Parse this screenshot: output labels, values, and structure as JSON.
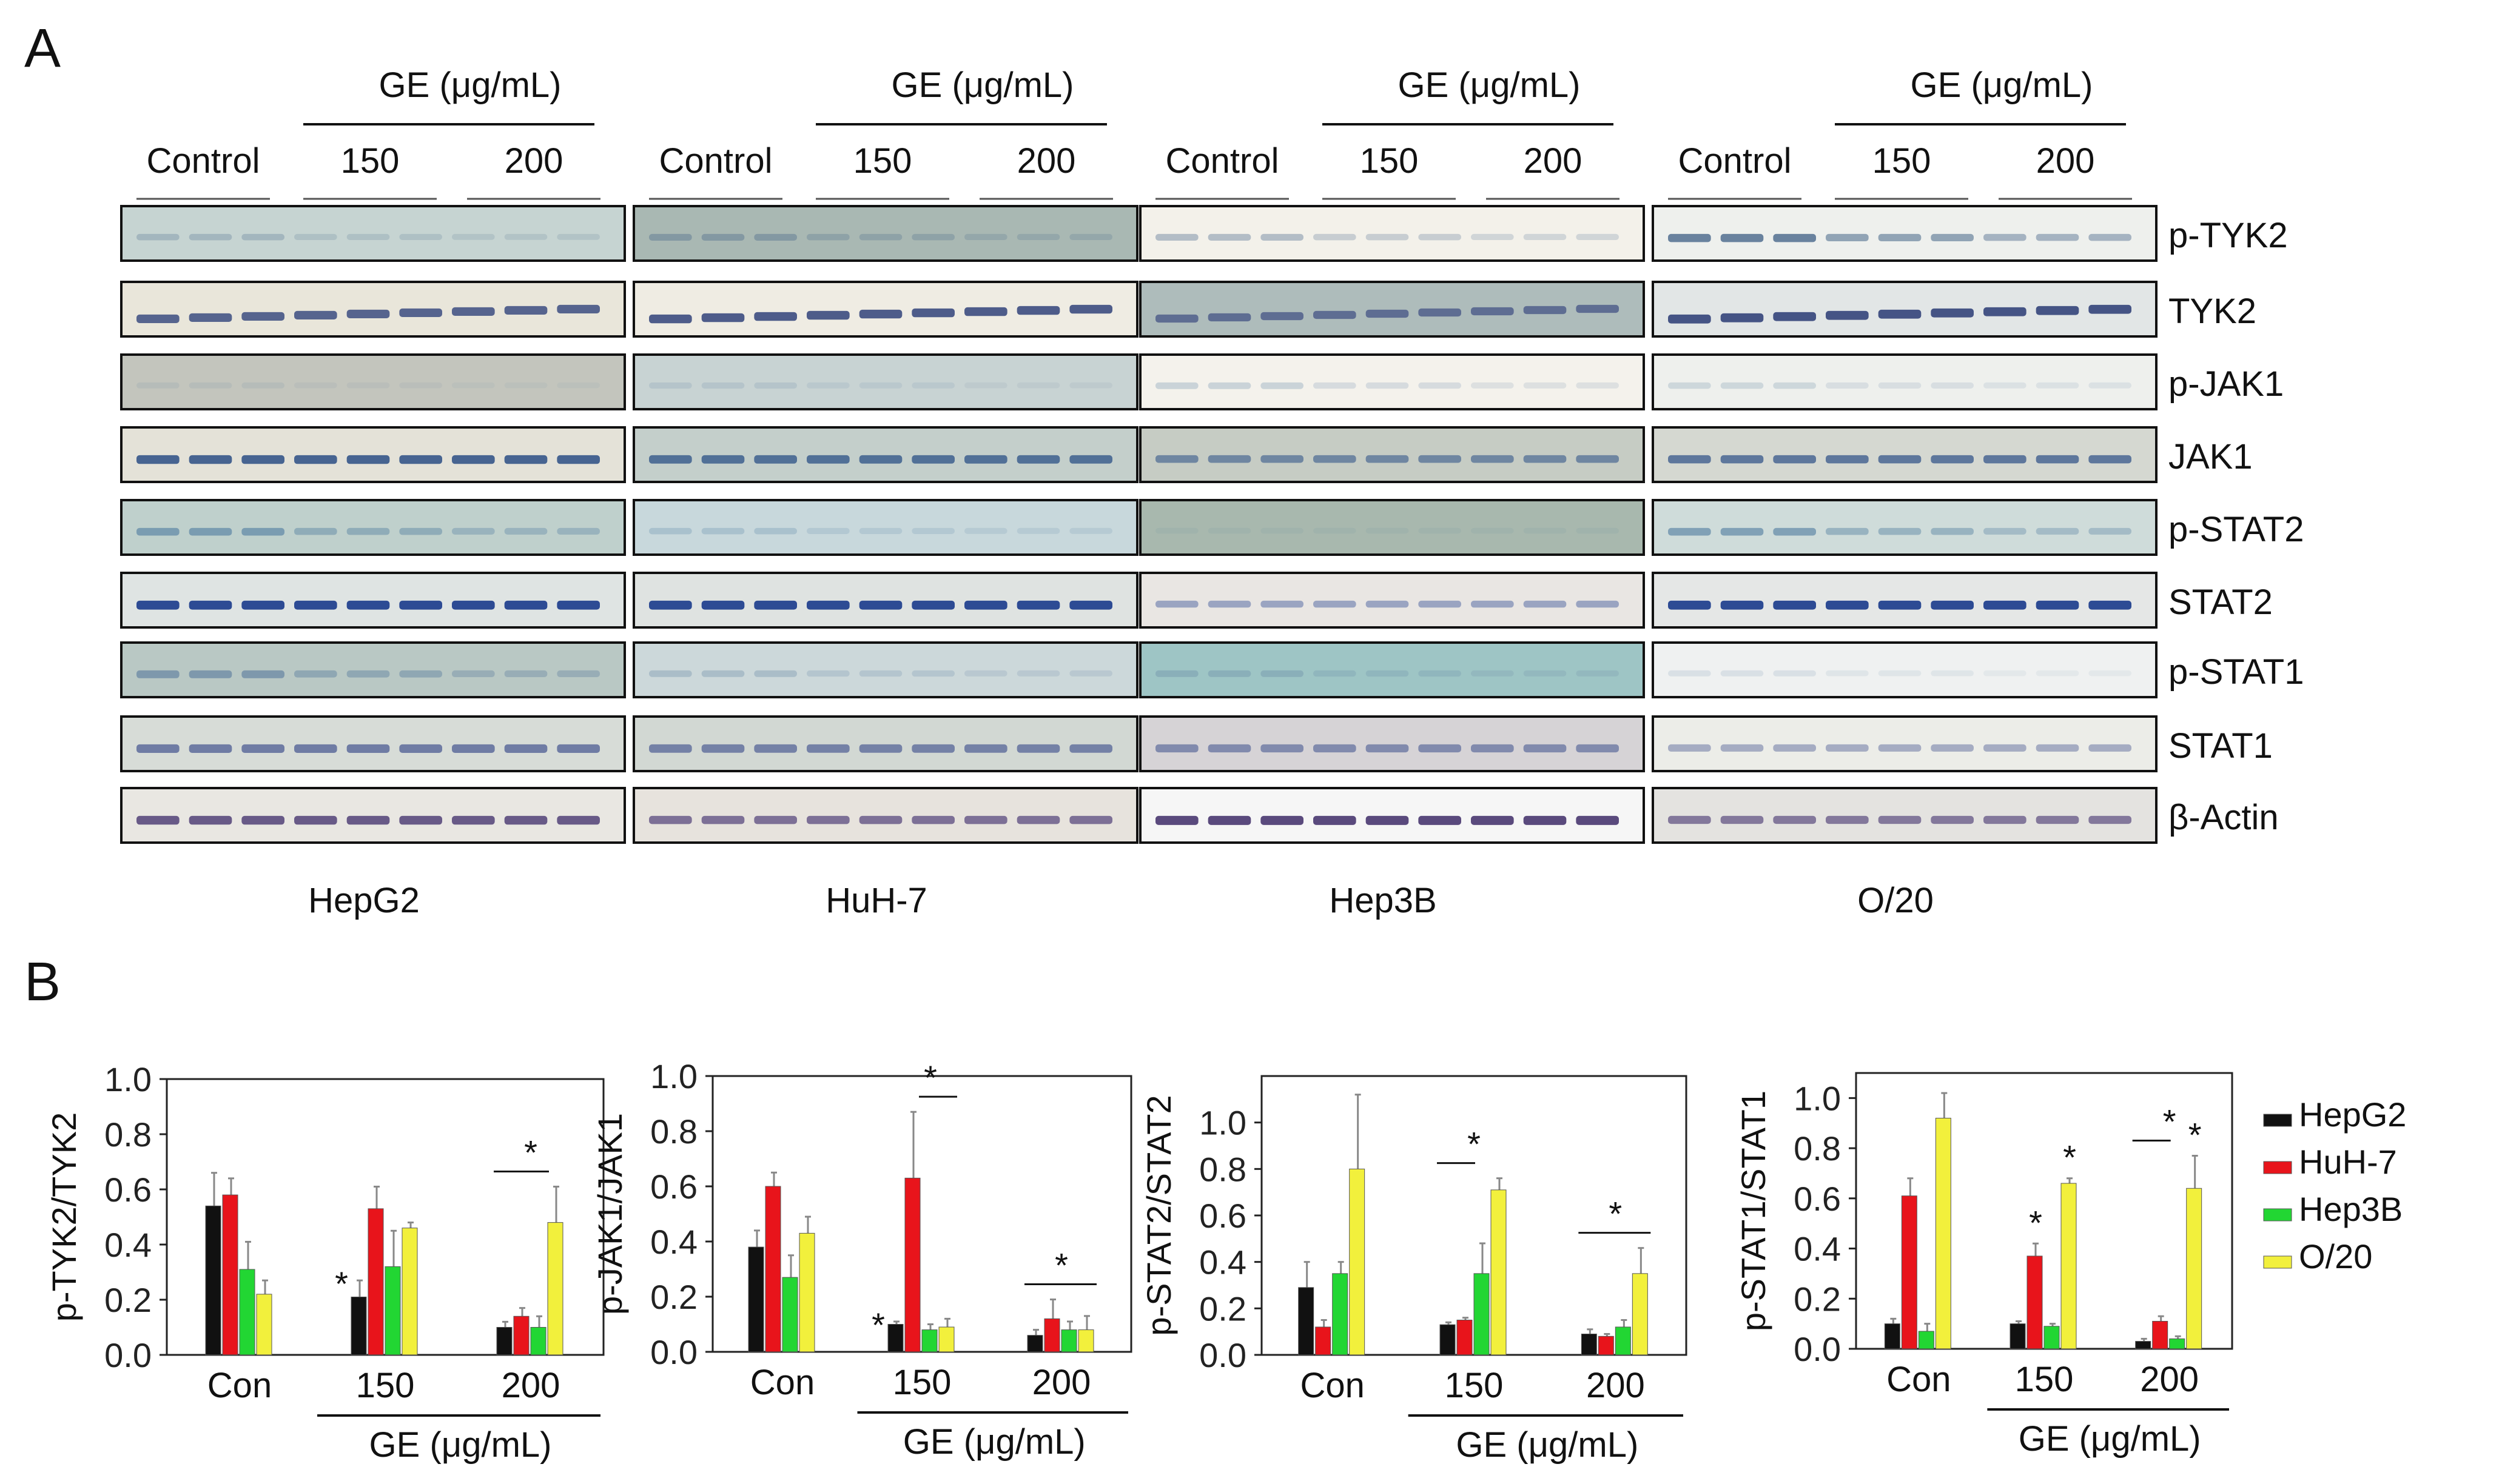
{
  "figure": {
    "panel_a_letter": "A",
    "panel_b_letter": "B",
    "colors": {
      "HepG2": "#111111",
      "HuH-7": "#e8141b",
      "Hep3B": "#22d633",
      "O/20": "#f2f03c"
    }
  },
  "panel_a": {
    "ge_label": "GE (μg/mL)",
    "col_labels": [
      "Control",
      "150",
      "200"
    ],
    "cell_lines": [
      "HepG2",
      "HuH-7",
      "Hep3B",
      "O/20"
    ],
    "proteins": [
      "p-TYK2",
      "TYK2",
      "p-JAK1",
      "JAK1",
      "p-STAT2",
      "STAT2",
      "p-STAT1",
      "STAT1",
      "β-Actin"
    ]
  },
  "panel_b": {
    "legend": [
      "HepG2",
      "HuH-7",
      "Hep3B",
      "O/20"
    ],
    "xlabel": "GE (μg/mL)",
    "sig_mark": "*"
  },
  "chart_data": [
    {
      "type": "bar",
      "ylabel": "p-TYK2/TYK2",
      "categories": [
        "Con",
        "150",
        "200"
      ],
      "ylim": [
        0,
        1.0
      ],
      "yticks": [
        "0.0",
        "0.2",
        "0.4",
        "0.6",
        "0.8",
        "1.0"
      ],
      "series": [
        {
          "name": "HepG2",
          "values": [
            0.54,
            0.21,
            0.1
          ],
          "errors": [
            0.12,
            0.06,
            0.02
          ]
        },
        {
          "name": "HuH-7",
          "values": [
            0.58,
            0.53,
            0.14
          ],
          "errors": [
            0.06,
            0.08,
            0.03
          ]
        },
        {
          "name": "Hep3B",
          "values": [
            0.31,
            0.32,
            0.1
          ],
          "errors": [
            0.1,
            0.13,
            0.04
          ]
        },
        {
          "name": "O/20",
          "values": [
            0.22,
            0.46,
            0.48
          ],
          "errors": [
            0.05,
            0.02,
            0.13
          ]
        }
      ],
      "stars": [
        {
          "group": 1,
          "series": 0
        },
        {
          "group": 2,
          "series": -1
        }
      ],
      "sig_lines": [
        {
          "group": 2,
          "from": 0,
          "to": 2
        }
      ]
    },
    {
      "type": "bar",
      "ylabel": "p-JAK1/JAK1",
      "categories": [
        "Con",
        "150",
        "200"
      ],
      "ylim": [
        0,
        1.0
      ],
      "yticks": [
        "0.0",
        "0.2",
        "0.4",
        "0.6",
        "0.8",
        "1.0"
      ],
      "series": [
        {
          "name": "HepG2",
          "values": [
            0.38,
            0.1,
            0.06
          ],
          "errors": [
            0.06,
            0.01,
            0.02
          ]
        },
        {
          "name": "HuH-7",
          "values": [
            0.6,
            0.63,
            0.12
          ],
          "errors": [
            0.05,
            0.24,
            0.07
          ]
        },
        {
          "name": "Hep3B",
          "values": [
            0.27,
            0.08,
            0.08
          ],
          "errors": [
            0.08,
            0.02,
            0.03
          ]
        },
        {
          "name": "O/20",
          "values": [
            0.43,
            0.09,
            0.08
          ],
          "errors": [
            0.06,
            0.03,
            0.05
          ]
        }
      ],
      "stars": [
        {
          "group": 1,
          "series": 0
        },
        {
          "group": 1,
          "series": -1
        },
        {
          "group": 2,
          "series": -1
        }
      ],
      "sig_lines": [
        {
          "group": 1,
          "from": 2,
          "to": 3
        },
        {
          "group": 2,
          "from": 0,
          "to": 3
        }
      ]
    },
    {
      "type": "bar",
      "ylabel": "p-STAT2/STAT2",
      "categories": [
        "Con",
        "150",
        "200"
      ],
      "ylim": [
        0,
        1.2
      ],
      "yticks": [
        "0.0",
        "0.2",
        "0.4",
        "0.6",
        "0.8",
        "1.0"
      ],
      "series": [
        {
          "name": "HepG2",
          "values": [
            0.29,
            0.13,
            0.09
          ],
          "errors": [
            0.11,
            0.01,
            0.02
          ]
        },
        {
          "name": "HuH-7",
          "values": [
            0.12,
            0.15,
            0.08
          ],
          "errors": [
            0.03,
            0.01,
            0.01
          ]
        },
        {
          "name": "Hep3B",
          "values": [
            0.35,
            0.35,
            0.12
          ],
          "errors": [
            0.05,
            0.13,
            0.03
          ]
        },
        {
          "name": "O/20",
          "values": [
            0.8,
            0.71,
            0.35
          ],
          "errors": [
            0.32,
            0.05,
            0.11
          ]
        }
      ],
      "stars": [
        {
          "group": 1,
          "series": -1
        },
        {
          "group": 2,
          "series": -1
        }
      ],
      "sig_lines": [
        {
          "group": 1,
          "from": 0,
          "to": 1
        },
        {
          "group": 2,
          "from": 0,
          "to": 3
        }
      ]
    },
    {
      "type": "bar",
      "ylabel": "p-STAT1/STAT1",
      "categories": [
        "Con",
        "150",
        "200"
      ],
      "ylim": [
        0,
        1.1
      ],
      "yticks": [
        "0.0",
        "0.2",
        "0.4",
        "0.6",
        "0.8",
        "1.0"
      ],
      "series": [
        {
          "name": "HepG2",
          "values": [
            0.1,
            0.1,
            0.03
          ],
          "errors": [
            0.02,
            0.01,
            0.01
          ]
        },
        {
          "name": "HuH-7",
          "values": [
            0.61,
            0.37,
            0.11
          ],
          "errors": [
            0.07,
            0.05,
            0.02
          ]
        },
        {
          "name": "Hep3B",
          "values": [
            0.07,
            0.09,
            0.04
          ],
          "errors": [
            0.03,
            0.01,
            0.01
          ]
        },
        {
          "name": "O/20",
          "values": [
            0.92,
            0.66,
            0.64
          ],
          "errors": [
            0.1,
            0.02,
            0.13
          ]
        }
      ],
      "stars": [
        {
          "group": 1,
          "series": 1
        },
        {
          "group": 1,
          "series": 3
        },
        {
          "group": 2,
          "series": 3
        },
        {
          "group": 2,
          "series": -1
        }
      ],
      "sig_lines": [
        {
          "group": 2,
          "from": 0,
          "to": 1
        }
      ]
    }
  ]
}
